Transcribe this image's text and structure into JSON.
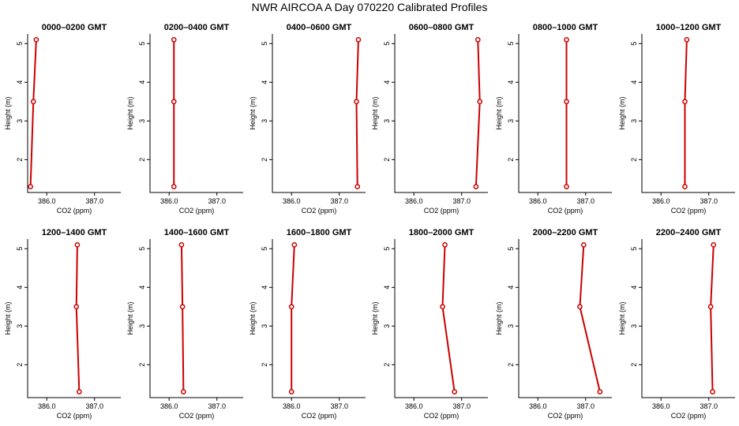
{
  "figure_title": "NWR AIRCOA A  Day 070220  Calibrated Profiles",
  "chart_data": [
    {
      "type": "line",
      "title": "0000–0200 GMT",
      "xlabel": "CO2 (ppm)",
      "ylabel": "Height (m)",
      "xlim": [
        385.6,
        387.55
      ],
      "ylim": [
        1.15,
        5.25
      ],
      "xticks": [
        386.0,
        387.0
      ],
      "xtick_labels": [
        "386.0",
        "387.0"
      ],
      "yticks": [
        2,
        3,
        4,
        5
      ],
      "ytick_labels": [
        "2",
        "3",
        "4",
        "5"
      ],
      "x": [
        385.66,
        385.72,
        385.78
      ],
      "y": [
        1.3,
        3.5,
        5.1
      ],
      "grid": false
    },
    {
      "type": "line",
      "title": "0200–0400 GMT",
      "xlabel": "CO2 (ppm)",
      "ylabel": "Height (m)",
      "xlim": [
        385.6,
        387.55
      ],
      "ylim": [
        1.15,
        5.25
      ],
      "xticks": [
        386.0,
        387.0
      ],
      "xtick_labels": [
        "386.0",
        "387.0"
      ],
      "yticks": [
        2,
        3,
        4,
        5
      ],
      "ytick_labels": [
        "2",
        "3",
        "4",
        "5"
      ],
      "x": [
        386.1,
        386.1,
        386.1
      ],
      "y": [
        1.3,
        3.5,
        5.1
      ],
      "grid": false
    },
    {
      "type": "line",
      "title": "0400–0600 GMT",
      "xlabel": "CO2 (ppm)",
      "ylabel": "Height (m)",
      "xlim": [
        385.6,
        387.55
      ],
      "ylim": [
        1.15,
        5.25
      ],
      "xticks": [
        386.0,
        387.0
      ],
      "xtick_labels": [
        "386.0",
        "387.0"
      ],
      "yticks": [
        2,
        3,
        4,
        5
      ],
      "ytick_labels": [
        "2",
        "3",
        "4",
        "5"
      ],
      "x": [
        387.38,
        387.36,
        387.4
      ],
      "y": [
        1.3,
        3.5,
        5.1
      ],
      "grid": false
    },
    {
      "type": "line",
      "title": "0600–0800 GMT",
      "xlabel": "CO2 (ppm)",
      "ylabel": "Height (m)",
      "xlim": [
        385.6,
        387.55
      ],
      "ylim": [
        1.15,
        5.25
      ],
      "xticks": [
        386.0,
        387.0
      ],
      "xtick_labels": [
        "386.0",
        "387.0"
      ],
      "yticks": [
        2,
        3,
        4,
        5
      ],
      "ytick_labels": [
        "2",
        "3",
        "4",
        "5"
      ],
      "x": [
        387.3,
        387.38,
        387.34
      ],
      "y": [
        1.3,
        3.5,
        5.1
      ],
      "grid": false
    },
    {
      "type": "line",
      "title": "0800–1000 GMT",
      "xlabel": "CO2 (ppm)",
      "ylabel": "Height (m)",
      "xlim": [
        385.6,
        387.55
      ],
      "ylim": [
        1.15,
        5.25
      ],
      "xticks": [
        386.0,
        387.0
      ],
      "xtick_labels": [
        "386.0",
        "387.0"
      ],
      "yticks": [
        2,
        3,
        4,
        5
      ],
      "ytick_labels": [
        "2",
        "3",
        "4",
        "5"
      ],
      "x": [
        386.6,
        386.6,
        386.6
      ],
      "y": [
        1.3,
        3.5,
        5.1
      ],
      "grid": false
    },
    {
      "type": "line",
      "title": "1000–1200 GMT",
      "xlabel": "CO2 (ppm)",
      "ylabel": "Height (m)",
      "xlim": [
        385.6,
        387.55
      ],
      "ylim": [
        1.15,
        5.25
      ],
      "xticks": [
        386.0,
        387.0
      ],
      "xtick_labels": [
        "386.0",
        "387.0"
      ],
      "yticks": [
        2,
        3,
        4,
        5
      ],
      "ytick_labels": [
        "2",
        "3",
        "4",
        "5"
      ],
      "x": [
        386.5,
        386.5,
        386.54
      ],
      "y": [
        1.3,
        3.5,
        5.1
      ],
      "grid": false
    },
    {
      "type": "line",
      "title": "1200–1400 GMT",
      "xlabel": "CO2 (ppm)",
      "ylabel": "Height (m)",
      "xlim": [
        385.6,
        387.55
      ],
      "ylim": [
        1.15,
        5.25
      ],
      "xticks": [
        386.0,
        387.0
      ],
      "xtick_labels": [
        "386.0",
        "387.0"
      ],
      "yticks": [
        2,
        3,
        4,
        5
      ],
      "ytick_labels": [
        "2",
        "3",
        "4",
        "5"
      ],
      "x": [
        386.68,
        386.62,
        386.64
      ],
      "y": [
        1.3,
        3.5,
        5.1
      ],
      "grid": false
    },
    {
      "type": "line",
      "title": "1400–1600 GMT",
      "xlabel": "CO2 (ppm)",
      "ylabel": "Height (m)",
      "xlim": [
        385.6,
        387.55
      ],
      "ylim": [
        1.15,
        5.25
      ],
      "xticks": [
        386.0,
        387.0
      ],
      "xtick_labels": [
        "386.0",
        "387.0"
      ],
      "yticks": [
        2,
        3,
        4,
        5
      ],
      "ytick_labels": [
        "2",
        "3",
        "4",
        "5"
      ],
      "x": [
        386.3,
        386.28,
        386.26
      ],
      "y": [
        1.3,
        3.5,
        5.1
      ],
      "grid": false
    },
    {
      "type": "line",
      "title": "1600–1800 GMT",
      "xlabel": "CO2 (ppm)",
      "ylabel": "Height (m)",
      "xlim": [
        385.6,
        387.55
      ],
      "ylim": [
        1.15,
        5.25
      ],
      "xticks": [
        386.0,
        387.0
      ],
      "xtick_labels": [
        "386.0",
        "387.0"
      ],
      "yticks": [
        2,
        3,
        4,
        5
      ],
      "ytick_labels": [
        "2",
        "3",
        "4",
        "5"
      ],
      "x": [
        386.0,
        386.0,
        386.06
      ],
      "y": [
        1.3,
        3.5,
        5.1
      ],
      "grid": false
    },
    {
      "type": "line",
      "title": "1800–2000 GMT",
      "xlabel": "CO2 (ppm)",
      "ylabel": "Height (m)",
      "xlim": [
        385.6,
        387.55
      ],
      "ylim": [
        1.15,
        5.25
      ],
      "xticks": [
        386.0,
        387.0
      ],
      "xtick_labels": [
        "386.0",
        "387.0"
      ],
      "yticks": [
        2,
        3,
        4,
        5
      ],
      "ytick_labels": [
        "2",
        "3",
        "4",
        "5"
      ],
      "x": [
        386.85,
        386.6,
        386.65
      ],
      "y": [
        1.3,
        3.5,
        5.1
      ],
      "grid": false
    },
    {
      "type": "line",
      "title": "2000–2200 GMT",
      "xlabel": "CO2 (ppm)",
      "ylabel": "Height (m)",
      "xlim": [
        385.6,
        387.55
      ],
      "ylim": [
        1.15,
        5.25
      ],
      "xticks": [
        386.0,
        387.0
      ],
      "xtick_labels": [
        "386.0",
        "387.0"
      ],
      "yticks": [
        2,
        3,
        4,
        5
      ],
      "ytick_labels": [
        "2",
        "3",
        "4",
        "5"
      ],
      "x": [
        387.3,
        386.88,
        386.96
      ],
      "y": [
        1.3,
        3.5,
        5.1
      ],
      "grid": false
    },
    {
      "type": "line",
      "title": "2200–2400 GMT",
      "xlabel": "CO2 (ppm)",
      "ylabel": "Height (m)",
      "xlim": [
        385.6,
        387.55
      ],
      "ylim": [
        1.15,
        5.25
      ],
      "xticks": [
        386.0,
        387.0
      ],
      "xtick_labels": [
        "386.0",
        "387.0"
      ],
      "yticks": [
        2,
        3,
        4,
        5
      ],
      "ytick_labels": [
        "2",
        "3",
        "4",
        "5"
      ],
      "x": [
        387.08,
        387.04,
        387.1
      ],
      "y": [
        1.3,
        3.5,
        5.1
      ],
      "grid": false
    }
  ],
  "colors": {
    "series": "#cc0000",
    "axes": "#000000",
    "background": "#ffffff"
  }
}
